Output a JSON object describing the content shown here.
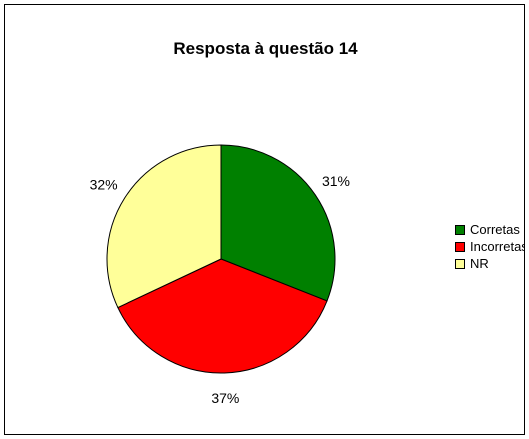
{
  "chart_data": {
    "type": "pie",
    "title": "Resposta à questão 14",
    "categories": [
      "Corretas",
      "Incorretas",
      "NR"
    ],
    "values": [
      31,
      37,
      32
    ],
    "data_labels": [
      "31%",
      "37%",
      "32%"
    ],
    "colors": [
      "#008000",
      "#ff0000",
      "#ffff99"
    ],
    "legend_placement": "right"
  }
}
